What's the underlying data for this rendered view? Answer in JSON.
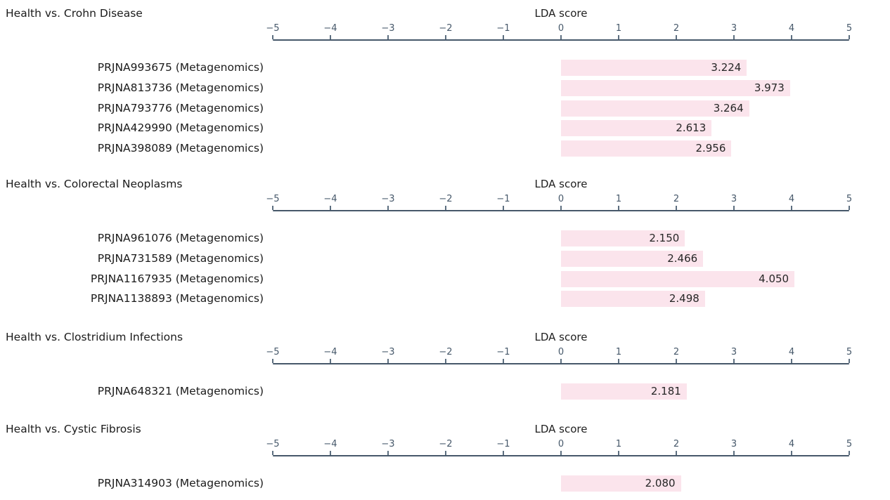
{
  "page": {
    "background": "#ffffff"
  },
  "colors": {
    "bar_fill": "#fbe4ec",
    "axis_line": "#46586a",
    "tick_mark": "#5d6f80",
    "tick_label": "#46586a",
    "title_text": "#1b1b1b",
    "value_text": "#262626"
  },
  "axis": {
    "label": "LDA score",
    "min": -5,
    "max": 5,
    "tick_labels": [
      "−5",
      "−4",
      "−3",
      "−2",
      "−1",
      "0",
      "1",
      "2",
      "3",
      "4",
      "5"
    ]
  },
  "chart_data": [
    {
      "type": "bar",
      "title": "Health vs. Crohn Disease",
      "xlabel": "LDA score",
      "xlim": [
        -5,
        5
      ],
      "orientation": "horizontal",
      "categories": [
        "PRJNA993675 (Metagenomics)",
        "PRJNA813736 (Metagenomics)",
        "PRJNA793776 (Metagenomics)",
        "PRJNA429990 (Metagenomics)",
        "PRJNA398089 (Metagenomics)"
      ],
      "values": [
        3.224,
        3.973,
        3.264,
        2.613,
        2.956
      ],
      "value_labels": [
        "3.224",
        "3.973",
        "3.264",
        "2.613",
        "2.956"
      ]
    },
    {
      "type": "bar",
      "title": "Health vs. Colorectal Neoplasms",
      "xlabel": "LDA score",
      "xlim": [
        -5,
        5
      ],
      "orientation": "horizontal",
      "categories": [
        "PRJNA961076 (Metagenomics)",
        "PRJNA731589 (Metagenomics)",
        "PRJNA1167935 (Metagenomics)",
        "PRJNA1138893 (Metagenomics)"
      ],
      "values": [
        2.15,
        2.466,
        4.05,
        2.498
      ],
      "value_labels": [
        "2.150",
        "2.466",
        "4.050",
        "2.498"
      ]
    },
    {
      "type": "bar",
      "title": "Health vs. Clostridium Infections",
      "xlabel": "LDA score",
      "xlim": [
        -5,
        5
      ],
      "orientation": "horizontal",
      "categories": [
        "PRJNA648321 (Metagenomics)"
      ],
      "values": [
        2.181
      ],
      "value_labels": [
        "2.181"
      ]
    },
    {
      "type": "bar",
      "title": "Health vs. Cystic Fibrosis",
      "xlabel": "LDA score",
      "xlim": [
        -5,
        5
      ],
      "orientation": "horizontal",
      "categories": [
        "PRJNA314903 (Metagenomics)"
      ],
      "values": [
        2.08
      ],
      "value_labels": [
        "2.080"
      ]
    }
  ]
}
